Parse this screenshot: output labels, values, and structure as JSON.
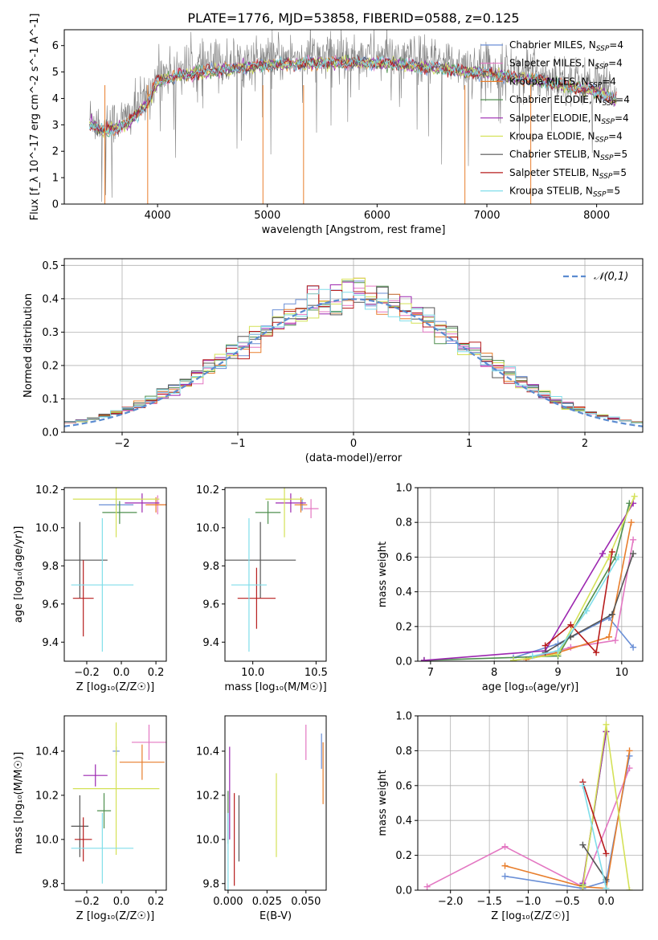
{
  "figure_title": "PLATE=1776, MJD=53858, FIBERID=0588, z=0.125",
  "models": [
    {
      "name": "Chabrier MILES",
      "nssp": "4",
      "color": "#6a8fd6"
    },
    {
      "name": "Salpeter MILES",
      "nssp": "4",
      "color": "#e377c2"
    },
    {
      "name": "Kroupa MILES",
      "nssp": "4",
      "color": "#e87e2c"
    },
    {
      "name": "Chabrier ELODIE",
      "nssp": "4",
      "color": "#4f8f4f"
    },
    {
      "name": "Salpeter ELODIE",
      "nssp": "4",
      "color": "#9c27b0"
    },
    {
      "name": "Kroupa ELODIE",
      "nssp": "4",
      "color": "#d4e157"
    },
    {
      "name": "Chabrier STELIB",
      "nssp": "5",
      "color": "#555555"
    },
    {
      "name": "Salpeter STELIB",
      "nssp": "5",
      "color": "#b71c1c"
    },
    {
      "name": "Kroupa STELIB",
      "nssp": "5",
      "color": "#80deea"
    }
  ],
  "chart_data": [
    {
      "id": "spectrum",
      "type": "line",
      "xlabel": "wavelength [Angstrom, rest frame]",
      "ylabel": "Flux [f_λ 10^-17 erg cm^-2 s^-1 A^-1]",
      "xlim": [
        3150,
        8420
      ],
      "ylim": [
        0,
        6.6
      ],
      "xticks": [
        4000,
        5000,
        6000,
        7000,
        8000
      ],
      "yticks": [
        0,
        1,
        2,
        3,
        4,
        5,
        6
      ],
      "data_color": "#808080",
      "continuum_x": [
        3380,
        3500,
        3700,
        3900,
        4000,
        4200,
        4500,
        5000,
        5500,
        6000,
        6500,
        7000,
        7500,
        8000,
        8180
      ],
      "continuum_y": [
        3.3,
        3.0,
        3.2,
        4.0,
        4.9,
        5.1,
        5.3,
        5.5,
        5.6,
        5.6,
        5.4,
        5.2,
        4.9,
        4.5,
        4.2
      ],
      "grid": false,
      "legend": "top-right"
    },
    {
      "id": "residuals",
      "type": "histogram",
      "xlabel": "(data-model)/error",
      "ylabel": "Normed distribution",
      "xlim": [
        -2.5,
        2.5
      ],
      "ylim": [
        0,
        0.52
      ],
      "xticks": [
        -2,
        -1,
        0,
        1,
        2
      ],
      "yticks": [
        0.0,
        0.1,
        0.2,
        0.3,
        0.4,
        0.5
      ],
      "curve_label": "𝒩(0,1)",
      "curve_color": "#5b8bd0",
      "bin_width": 0.1,
      "grid": true,
      "legend": "top-right"
    },
    {
      "id": "age-vs-Z",
      "type": "errorbar",
      "xlabel": "Z [log₁₀(Z/Z☉)]",
      "ylabel": "age  [log₁₀(age/yr)]",
      "xlim": [
        -0.33,
        0.26
      ],
      "ylim": [
        9.3,
        10.21
      ],
      "xticks": [
        -0.2,
        0.0,
        0.2
      ],
      "yticks": [
        9.4,
        9.6,
        9.8,
        10.0,
        10.2
      ],
      "points": [
        {
          "x": -0.03,
          "xerr": 0.1,
          "y": 10.12,
          "yerr": 0.03,
          "model": 0
        },
        {
          "x": 0.21,
          "xerr": 0.06,
          "y": 10.12,
          "yerr": 0.05,
          "model": 1
        },
        {
          "x": 0.2,
          "xerr": 0.06,
          "y": 10.12,
          "yerr": 0.04,
          "model": 2
        },
        {
          "x": -0.01,
          "xerr": 0.1,
          "y": 10.08,
          "yerr": 0.06,
          "model": 3
        },
        {
          "x": 0.12,
          "xerr": 0.1,
          "y": 10.13,
          "yerr": 0.05,
          "model": 4
        },
        {
          "x": -0.03,
          "xerr": 0.25,
          "y": 10.15,
          "yerr": 0.2,
          "model": 5
        },
        {
          "x": -0.24,
          "xerr": 0.16,
          "y": 9.83,
          "yerr": 0.2,
          "model": 6
        },
        {
          "x": -0.22,
          "xerr": 0.06,
          "y": 9.63,
          "yerr": 0.2,
          "model": 7
        },
        {
          "x": -0.11,
          "xerr": 0.18,
          "y": 9.7,
          "yerr": 0.35,
          "model": 8
        }
      ]
    },
    {
      "id": "age-vs-mass",
      "type": "errorbar",
      "xlabel": "mass [log₁₀(M/M☉)]",
      "ylabel": "",
      "xlim": [
        9.78,
        10.58
      ],
      "ylim": [
        9.3,
        10.21
      ],
      "xticks": [
        10.0,
        10.5
      ],
      "yticks": [
        9.4,
        9.6,
        9.8,
        10.0,
        10.2
      ],
      "points": [
        {
          "x": 10.39,
          "xerr": 0.02,
          "y": 10.12,
          "yerr": 0.03,
          "model": 0
        },
        {
          "x": 10.46,
          "xerr": 0.06,
          "y": 10.1,
          "yerr": 0.05,
          "model": 1
        },
        {
          "x": 10.38,
          "xerr": 0.05,
          "y": 10.12,
          "yerr": 0.04,
          "model": 2
        },
        {
          "x": 10.12,
          "xerr": 0.1,
          "y": 10.08,
          "yerr": 0.06,
          "model": 3
        },
        {
          "x": 10.3,
          "xerr": 0.12,
          "y": 10.13,
          "yerr": 0.05,
          "model": 4
        },
        {
          "x": 10.25,
          "xerr": 0.15,
          "y": 10.15,
          "yerr": 0.2,
          "model": 5
        },
        {
          "x": 10.06,
          "xerr": 0.28,
          "y": 9.83,
          "yerr": 0.2,
          "model": 6
        },
        {
          "x": 10.03,
          "xerr": 0.15,
          "y": 9.63,
          "yerr": 0.16,
          "model": 7
        },
        {
          "x": 9.97,
          "xerr": 0.14,
          "y": 9.7,
          "yerr": 0.35,
          "model": 8
        }
      ]
    },
    {
      "id": "weight-vs-age",
      "type": "line",
      "xlabel": "age  [log₁₀(age/yr)]",
      "ylabel": "mass weight",
      "xlim": [
        6.8,
        10.33
      ],
      "ylim": [
        0,
        1.0
      ],
      "xticks": [
        7,
        8,
        9,
        10
      ],
      "yticks": [
        0.0,
        0.2,
        0.4,
        0.6,
        0.8,
        1.0
      ],
      "grid": true,
      "series": [
        {
          "model": 0,
          "x": [
            8.3,
            9.0,
            9.8,
            10.18
          ],
          "y": [
            0.02,
            0.1,
            0.25,
            0.08
          ]
        },
        {
          "model": 1,
          "x": [
            8.5,
            9.2,
            9.9,
            10.18
          ],
          "y": [
            0.01,
            0.08,
            0.12,
            0.7
          ]
        },
        {
          "model": 2,
          "x": [
            8.5,
            9.0,
            9.8,
            10.15
          ],
          "y": [
            0.01,
            0.05,
            0.14,
            0.8
          ]
        },
        {
          "model": 3,
          "x": [
            6.9,
            9.0,
            9.9,
            10.12
          ],
          "y": [
            0.005,
            0.03,
            0.6,
            0.91
          ]
        },
        {
          "model": 4,
          "x": [
            6.9,
            8.8,
            9.7,
            10.18
          ],
          "y": [
            0.005,
            0.06,
            0.62,
            0.91
          ]
        },
        {
          "model": 5,
          "x": [
            8.3,
            9.0,
            9.8,
            10.2
          ],
          "y": [
            0.005,
            0.04,
            0.6,
            0.95
          ]
        },
        {
          "model": 6,
          "x": [
            8.8,
            9.2,
            9.85,
            10.18
          ],
          "y": [
            0.05,
            0.14,
            0.27,
            0.62
          ]
        },
        {
          "model": 7,
          "x": [
            8.8,
            9.2,
            9.6,
            9.85
          ],
          "y": [
            0.09,
            0.21,
            0.05,
            0.63
          ]
        },
        {
          "model": 8,
          "x": [
            8.6,
            9.0,
            9.45,
            9.95
          ],
          "y": [
            0.03,
            0.06,
            0.29,
            0.6
          ]
        }
      ]
    },
    {
      "id": "mass-vs-Z",
      "type": "errorbar",
      "xlabel": "Z [log₁₀(Z/Z☉)]",
      "ylabel": "mass [log₁₀(M/M☉)]",
      "xlim": [
        -0.33,
        0.26
      ],
      "ylim": [
        9.77,
        10.56
      ],
      "xticks": [
        -0.2,
        0.0,
        0.2
      ],
      "yticks": [
        9.8,
        10.0,
        10.2,
        10.4
      ],
      "points": [
        {
          "x": -0.03,
          "xerr": 0.02,
          "y": 10.4,
          "yerr": 0.02,
          "model": 0
        },
        {
          "x": 0.16,
          "xerr": 0.1,
          "y": 10.44,
          "yerr": 0.08,
          "model": 1
        },
        {
          "x": 0.12,
          "xerr": 0.13,
          "y": 10.35,
          "yerr": 0.08,
          "model": 2
        },
        {
          "x": -0.1,
          "xerr": 0.04,
          "y": 10.13,
          "yerr": 0.08,
          "model": 3
        },
        {
          "x": -0.15,
          "xerr": 0.07,
          "y": 10.29,
          "yerr": 0.05,
          "model": 4
        },
        {
          "x": -0.03,
          "xerr": 0.25,
          "y": 10.23,
          "yerr": 0.3,
          "model": 5
        },
        {
          "x": -0.24,
          "xerr": 0.05,
          "y": 10.06,
          "yerr": 0.14,
          "model": 6
        },
        {
          "x": -0.22,
          "xerr": 0.05,
          "y": 10.0,
          "yerr": 0.1,
          "model": 7
        },
        {
          "x": -0.11,
          "xerr": 0.18,
          "y": 9.96,
          "yerr": 0.16,
          "model": 8
        }
      ]
    },
    {
      "id": "mass-vs-EBV",
      "type": "errorbar",
      "xlabel": "E(B-V)",
      "ylabel": "",
      "xlim": [
        -0.002,
        0.063
      ],
      "ylim": [
        9.77,
        10.56
      ],
      "xticks": [
        0.0,
        0.025,
        0.05
      ],
      "yticks": [
        9.8,
        10.0,
        10.2,
        10.4
      ],
      "points": [
        {
          "x": 0.06,
          "xerr": 0,
          "y": 10.4,
          "yerr": 0.08,
          "model": 0
        },
        {
          "x": 0.05,
          "xerr": 0,
          "y": 10.44,
          "yerr": 0.08,
          "model": 1
        },
        {
          "x": 0.061,
          "xerr": 0,
          "y": 10.3,
          "yerr": 0.14,
          "model": 2
        },
        {
          "x": 0.0,
          "xerr": 0,
          "y": 10.1,
          "yerr": 0.12,
          "model": 3
        },
        {
          "x": 0.001,
          "xerr": 0,
          "y": 10.21,
          "yerr": 0.21,
          "model": 4
        },
        {
          "x": 0.031,
          "xerr": 0,
          "y": 10.11,
          "yerr": 0.19,
          "model": 5
        },
        {
          "x": 0.007,
          "xerr": 0,
          "y": 10.05,
          "yerr": 0.15,
          "model": 6
        },
        {
          "x": 0.004,
          "xerr": 0,
          "y": 10.0,
          "yerr": 0.21,
          "model": 7
        },
        {
          "x": 0.0,
          "xerr": 0,
          "y": 9.94,
          "yerr": 0.18,
          "model": 8
        }
      ]
    },
    {
      "id": "weight-vs-Z",
      "type": "line",
      "xlabel": "Z [log₁₀(Z/Z☉)]",
      "ylabel": "mass weight",
      "xlim": [
        -2.42,
        0.47
      ],
      "ylim": [
        0,
        1.0
      ],
      "xticks": [
        -2.0,
        -1.5,
        -1.0,
        -0.5,
        0.0
      ],
      "yticks": [
        0.0,
        0.2,
        0.4,
        0.6,
        0.8,
        1.0
      ],
      "grid": true,
      "series": [
        {
          "model": 0,
          "x": [
            -1.3,
            -0.3,
            0.0,
            0.3
          ],
          "y": [
            0.08,
            0.01,
            0.05,
            0.77
          ]
        },
        {
          "model": 1,
          "x": [
            -2.3,
            -1.3,
            -0.3,
            0.3
          ],
          "y": [
            0.02,
            0.25,
            0.02,
            0.7
          ]
        },
        {
          "model": 2,
          "x": [
            -1.3,
            -0.3,
            0.0,
            0.3
          ],
          "y": [
            0.14,
            0.02,
            0.01,
            0.8
          ]
        },
        {
          "model": 3,
          "x": [
            -0.3,
            0.0
          ],
          "y": [
            0.03,
            0.91
          ]
        },
        {
          "model": 4,
          "x": [
            -0.3,
            0.0
          ],
          "y": [
            0.04,
            0.91
          ]
        },
        {
          "model": 5,
          "x": [
            -0.3,
            0.0,
            0.3
          ],
          "y": [
            0.02,
            0.95,
            0.0
          ]
        },
        {
          "model": 6,
          "x": [
            -0.3,
            0.0
          ],
          "y": [
            0.26,
            0.06
          ]
        },
        {
          "model": 7,
          "x": [
            -0.3,
            0.0
          ],
          "y": [
            0.62,
            0.21
          ]
        },
        {
          "model": 8,
          "x": [
            -0.3,
            0.0
          ],
          "y": [
            0.6,
            0.01
          ]
        }
      ]
    }
  ]
}
